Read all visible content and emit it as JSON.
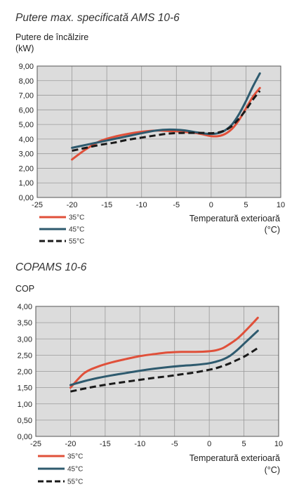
{
  "colors": {
    "c35": "#e0503a",
    "c45": "#2e5a6e",
    "c55": "#1a1a1a",
    "plot_bg": "#dcdcdc"
  },
  "chart_data": [
    {
      "type": "line",
      "title": "Putere max. specificată AMS 10-6",
      "ylabel": [
        "Putere de încălzire",
        "(kW)"
      ],
      "xlabel": [
        "Temperatură exterioară",
        "(°C)"
      ],
      "xlim": [
        -25,
        10
      ],
      "ylim": [
        0,
        9
      ],
      "xticks": [
        -25,
        -20,
        -15,
        -10,
        -5,
        0,
        5,
        10
      ],
      "xtick_labels": [
        "-25",
        "-20",
        "-15",
        "-10",
        "-5",
        "0",
        "5",
        "10"
      ],
      "yticks": [
        0,
        1,
        2,
        3,
        4,
        5,
        6,
        7,
        8,
        9
      ],
      "ytick_labels": [
        "0,00",
        "1,00",
        "2,00",
        "3,00",
        "4,00",
        "5,00",
        "6,00",
        "7,00",
        "8,00",
        "9,00"
      ],
      "grid": true,
      "legend_position": "bottom-left",
      "series": [
        {
          "name": "35°C",
          "color_key": "c35",
          "dash": "solid",
          "x": [
            -20,
            -18,
            -16,
            -14,
            -12,
            -10,
            -8,
            -6,
            -4,
            -2,
            -1,
            0,
            1,
            2,
            3,
            4,
            5,
            6,
            7
          ],
          "y": [
            2.6,
            3.3,
            3.85,
            4.15,
            4.35,
            4.5,
            4.58,
            4.55,
            4.5,
            4.4,
            4.3,
            4.2,
            4.2,
            4.35,
            4.7,
            5.3,
            6.1,
            6.9,
            7.5
          ]
        },
        {
          "name": "45°C",
          "color_key": "c45",
          "dash": "solid",
          "x": [
            -20,
            -18,
            -16,
            -14,
            -12,
            -10,
            -8,
            -6,
            -4,
            -2,
            -1,
            0,
            1,
            2,
            3,
            4,
            5,
            6,
            7
          ],
          "y": [
            3.4,
            3.6,
            3.8,
            4.0,
            4.2,
            4.4,
            4.58,
            4.65,
            4.6,
            4.45,
            4.38,
            4.35,
            4.4,
            4.6,
            5.0,
            5.7,
            6.6,
            7.6,
            8.5
          ]
        },
        {
          "name": "55°C",
          "color_key": "c55",
          "dash": "dashed",
          "x": [
            -20,
            -18,
            -16,
            -14,
            -12,
            -10,
            -8,
            -6,
            -4,
            -2,
            -1,
            0,
            1,
            2,
            3,
            4,
            5,
            6,
            7
          ],
          "y": [
            3.2,
            3.4,
            3.6,
            3.75,
            3.95,
            4.1,
            4.25,
            4.38,
            4.42,
            4.42,
            4.42,
            4.4,
            4.45,
            4.6,
            4.9,
            5.4,
            6.0,
            6.7,
            7.3
          ]
        }
      ]
    },
    {
      "type": "line",
      "title": "COPAMS 10-6",
      "ylabel": [
        "COP"
      ],
      "xlabel": [
        "Temperatură exterioară",
        "(°C)"
      ],
      "xlim": [
        -25,
        10
      ],
      "ylim": [
        0,
        4
      ],
      "xticks": [
        -25,
        -20,
        -15,
        -10,
        -5,
        0,
        5,
        10
      ],
      "xtick_labels": [
        "-25",
        "-20",
        "-15",
        "-10",
        "-5",
        "0",
        "5",
        "10"
      ],
      "yticks": [
        0,
        0.5,
        1,
        1.5,
        2,
        2.5,
        3,
        3.5,
        4
      ],
      "ytick_labels": [
        "0,00",
        "0,50",
        "1,00",
        "1,50",
        "2,00",
        "2,50",
        "3,00",
        "3,50",
        "4,00"
      ],
      "grid": true,
      "legend_position": "bottom-left",
      "series": [
        {
          "name": "35°C",
          "color_key": "c35",
          "dash": "solid",
          "x": [
            -20,
            -18,
            -16,
            -14,
            -12,
            -10,
            -8,
            -6,
            -4,
            -2,
            0,
            1,
            2,
            3,
            4,
            5,
            6,
            7
          ],
          "y": [
            1.5,
            1.95,
            2.15,
            2.28,
            2.38,
            2.47,
            2.53,
            2.58,
            2.6,
            2.6,
            2.62,
            2.65,
            2.72,
            2.85,
            3.0,
            3.2,
            3.42,
            3.65
          ]
        },
        {
          "name": "45°C",
          "color_key": "c45",
          "dash": "solid",
          "x": [
            -20,
            -18,
            -16,
            -14,
            -12,
            -10,
            -8,
            -6,
            -4,
            -2,
            0,
            1,
            2,
            3,
            4,
            5,
            6,
            7
          ],
          "y": [
            1.58,
            1.7,
            1.8,
            1.88,
            1.95,
            2.02,
            2.08,
            2.13,
            2.17,
            2.2,
            2.25,
            2.3,
            2.37,
            2.48,
            2.65,
            2.85,
            3.05,
            3.25
          ]
        },
        {
          "name": "55°C",
          "color_key": "c55",
          "dash": "dashed",
          "x": [
            -20,
            -18,
            -16,
            -14,
            -12,
            -10,
            -8,
            -6,
            -4,
            -2,
            0,
            1,
            2,
            3,
            4,
            5,
            6,
            7
          ],
          "y": [
            1.38,
            1.47,
            1.55,
            1.62,
            1.68,
            1.74,
            1.8,
            1.85,
            1.91,
            1.97,
            2.05,
            2.1,
            2.17,
            2.25,
            2.35,
            2.45,
            2.58,
            2.72
          ]
        }
      ]
    }
  ]
}
